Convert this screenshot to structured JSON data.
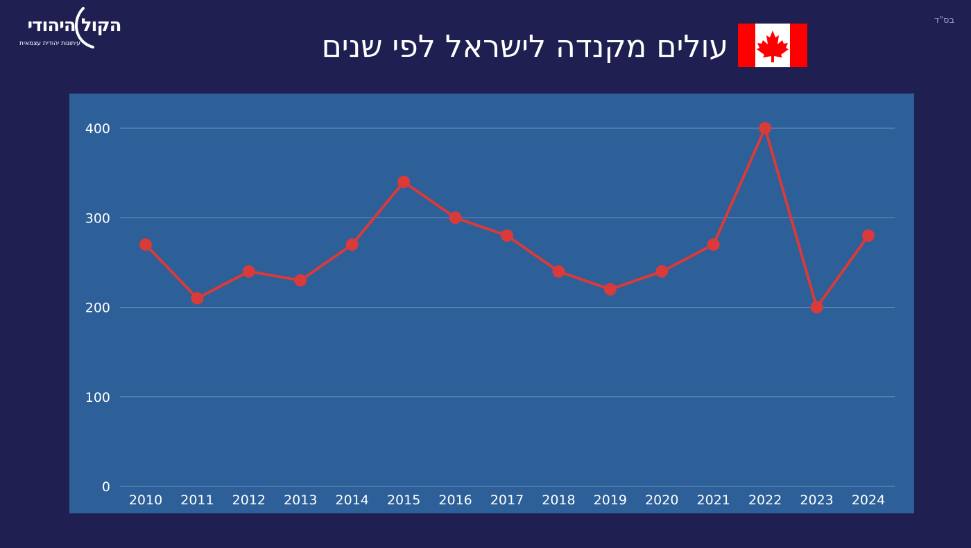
{
  "corner_mark": "בס\"ד",
  "logo": {
    "name": "הקול היהודי",
    "tagline": "עיתונות יהודית עצמאית"
  },
  "header": {
    "title": "עולים מקנדה לישראל לפי שנים",
    "flag_icon": "canada-flag-icon"
  },
  "colors": {
    "background": "#1f1f52",
    "plot_background": "#2d5f98",
    "line": "#d93a3a",
    "grid": "#6f93bf",
    "flag_red": "#ff0000"
  },
  "chart_data": {
    "type": "line",
    "title": "עולים מקנדה לישראל לפי שנים",
    "xlabel": "",
    "ylabel": "",
    "categories": [
      "2010",
      "2011",
      "2012",
      "2013",
      "2014",
      "2015",
      "2016",
      "2017",
      "2018",
      "2019",
      "2020",
      "2021",
      "2022",
      "2023",
      "2024"
    ],
    "series": [
      {
        "values": [
          270,
          210,
          240,
          230,
          270,
          340,
          300,
          280,
          240,
          220,
          240,
          270,
          400,
          200,
          280
        ]
      }
    ],
    "ylim": [
      0,
      400
    ],
    "yticks": [
      0,
      100,
      200,
      300,
      400
    ],
    "grid": true,
    "legend": "none"
  }
}
